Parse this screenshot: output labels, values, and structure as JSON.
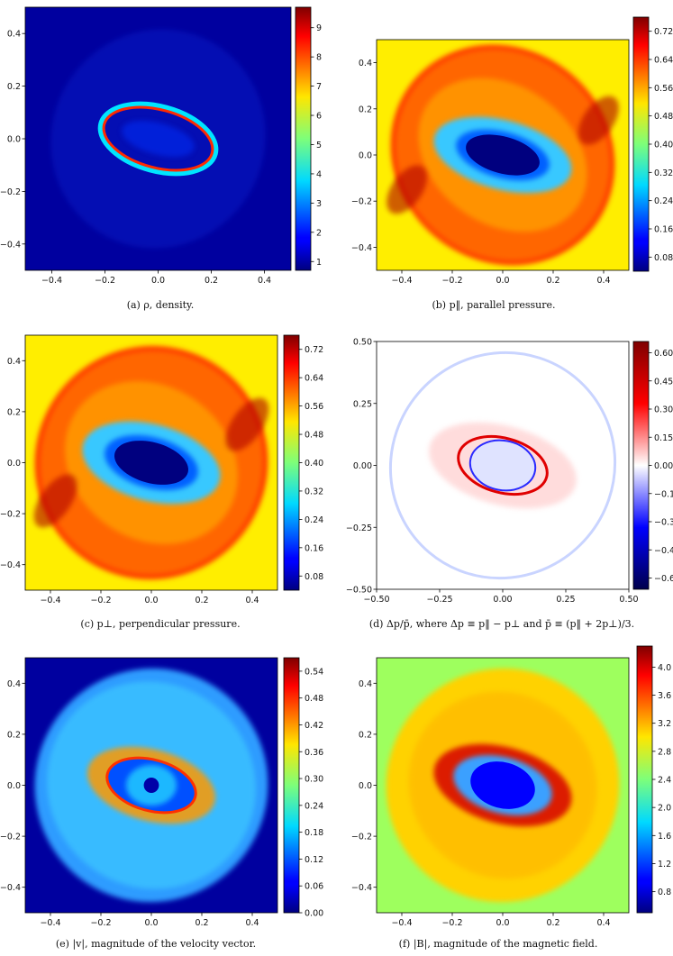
{
  "panels": [
    {
      "id": "a",
      "caption": "(a) ρ, density.",
      "chart_data": {
        "type": "heatmap",
        "xlim": [
          -0.5,
          0.5
        ],
        "ylim": [
          -0.5,
          0.5
        ],
        "xticks": [
          "−0.4",
          "−0.2",
          "0.0",
          "0.2",
          "0.4"
        ],
        "yticks": [
          "0.4",
          "0.2",
          "0.0",
          "−0.2",
          "−0.4"
        ],
        "colorbar": {
          "min": 0.7,
          "max": 9.7,
          "ticks": [
            "9",
            "8",
            "7",
            "6",
            "5",
            "4",
            "3",
            "2",
            "1"
          ]
        },
        "colormap": "jet",
        "background_color": "#00009f"
      }
    },
    {
      "id": "b",
      "caption": "(b) p‖, parallel pressure.",
      "chart_data": {
        "type": "heatmap",
        "xlim": [
          -0.5,
          0.5
        ],
        "ylim": [
          -0.5,
          0.5
        ],
        "xticks": [
          "−0.4",
          "−0.2",
          "0.0",
          "0.2",
          "0.4"
        ],
        "yticks": [
          "0.4",
          "0.2",
          "0.0",
          "−0.2",
          "−0.4"
        ],
        "colorbar": {
          "min": 0.04,
          "max": 0.76,
          "ticks": [
            "0.72",
            "0.64",
            "0.56",
            "0.48",
            "0.40",
            "0.32",
            "0.24",
            "0.16",
            "0.08"
          ]
        },
        "colormap": "jet",
        "background_color": "#ffee00"
      }
    },
    {
      "id": "c",
      "caption": "(c) p⊥, perpendicular pressure.",
      "chart_data": {
        "type": "heatmap",
        "xlim": [
          -0.5,
          0.5
        ],
        "ylim": [
          -0.5,
          0.5
        ],
        "xticks": [
          "−0.4",
          "−0.2",
          "0.0",
          "0.2",
          "0.4"
        ],
        "yticks": [
          "0.4",
          "0.2",
          "0.0",
          "−0.2",
          "−0.4"
        ],
        "colorbar": {
          "min": 0.04,
          "max": 0.76,
          "ticks": [
            "0.72",
            "0.64",
            "0.56",
            "0.48",
            "0.40",
            "0.32",
            "0.24",
            "0.16",
            "0.08"
          ]
        },
        "colormap": "jet",
        "background_color": "#ffee00"
      }
    },
    {
      "id": "d",
      "caption": "(d) Δp/p̄, where Δp ≡ p‖ − p⊥ and p̄ ≡ (p‖ + 2p⊥)/3.",
      "chart_data": {
        "type": "heatmap",
        "xlim": [
          -0.5,
          0.5
        ],
        "ylim": [
          -0.5,
          0.5
        ],
        "xticks": [
          "−0.50",
          "−0.25",
          "0.00",
          "0.25",
          "0.50"
        ],
        "yticks": [
          "0.50",
          "0.25",
          "0.00",
          "−0.25",
          "−0.50"
        ],
        "colorbar": {
          "min": -0.66,
          "max": 0.66,
          "ticks": [
            "0.60",
            "0.45",
            "0.30",
            "0.15",
            "0.00",
            "−0.15",
            "−0.30",
            "−0.45",
            "−0.60"
          ]
        },
        "colormap": "seismic",
        "background_color": "#ffffff"
      }
    },
    {
      "id": "e",
      "caption": "(e) |v|, magnitude of the velocity vector.",
      "chart_data": {
        "type": "heatmap",
        "xlim": [
          -0.5,
          0.5
        ],
        "ylim": [
          -0.5,
          0.5
        ],
        "xticks": [
          "−0.4",
          "−0.2",
          "0.0",
          "0.2",
          "0.4"
        ],
        "yticks": [
          "0.4",
          "0.2",
          "0.0",
          "−0.2",
          "−0.4"
        ],
        "colorbar": {
          "min": 0.0,
          "max": 0.57,
          "ticks": [
            "0.54",
            "0.48",
            "0.42",
            "0.36",
            "0.30",
            "0.24",
            "0.18",
            "0.12",
            "0.06",
            "0.00"
          ]
        },
        "colormap": "jet",
        "background_color": "#00009f"
      }
    },
    {
      "id": "f",
      "caption": "(f) |B|, magnitude of the magnetic field.",
      "chart_data": {
        "type": "heatmap",
        "xlim": [
          -0.5,
          0.5
        ],
        "ylim": [
          -0.5,
          0.5
        ],
        "xticks": [
          "−0.4",
          "−0.2",
          "0.0",
          "0.2",
          "0.4"
        ],
        "yticks": [
          "0.4",
          "0.2",
          "0.0",
          "−0.2",
          "−0.4"
        ],
        "colorbar": {
          "min": 0.5,
          "max": 4.3,
          "ticks": [
            "4.0",
            "3.6",
            "3.2",
            "2.8",
            "2.4",
            "2.0",
            "1.6",
            "1.2",
            "0.8"
          ]
        },
        "colormap": "jet",
        "background_color": "#9eff5e"
      }
    }
  ]
}
